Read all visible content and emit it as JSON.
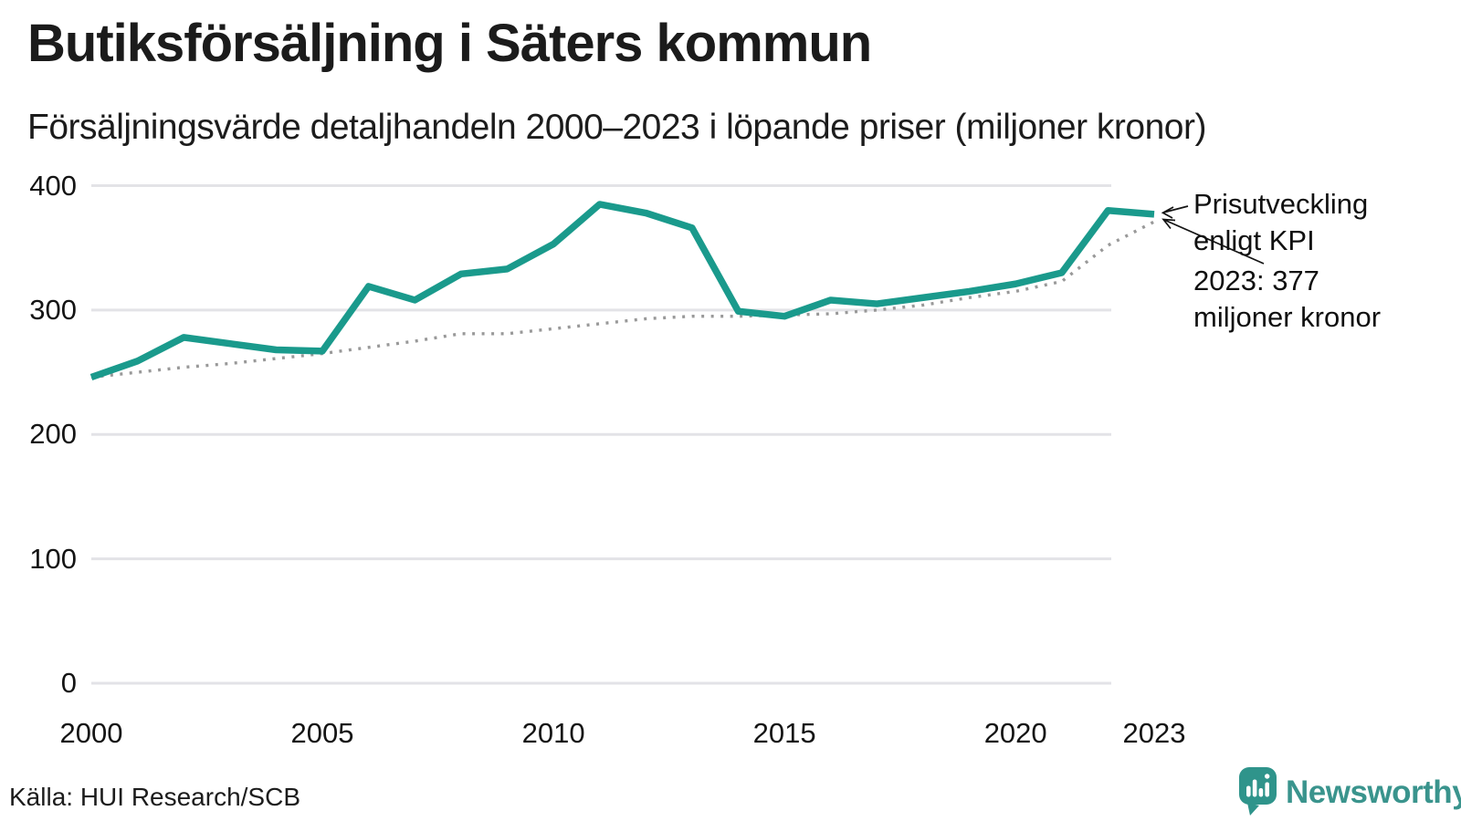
{
  "title": "Butiksförsäljning i Säters kommun",
  "subtitle": "Försäljningsvärde detaljhandeln 2000–2023 i löpande priser (miljoner kronor)",
  "source": "Källa: HUI Research/SCB",
  "brand": {
    "name": "Newsworthy",
    "icon": "speech-bubble-bar-chart-icon",
    "color": "#2f948b",
    "text_color": "#3a948d"
  },
  "colors": {
    "sales_line": "#1a9a8c",
    "kpi_line": "#999999",
    "grid": "#e3e3e7",
    "text": "#141414"
  },
  "annotations": {
    "kpi": {
      "line1": "Prisutveckling",
      "line2": "enligt KPI"
    },
    "value": {
      "line1": "2023: 377",
      "line2": "miljoner kronor"
    }
  },
  "chart_data": {
    "type": "line",
    "title": "Butiksförsäljning i Säters kommun",
    "subtitle": "Försäljningsvärde detaljhandeln 2000–2023 i löpande priser (miljoner kronor)",
    "unit": "miljoner kronor",
    "x": [
      2000,
      2001,
      2002,
      2003,
      2004,
      2005,
      2006,
      2007,
      2008,
      2009,
      2010,
      2011,
      2012,
      2013,
      2014,
      2015,
      2016,
      2017,
      2018,
      2019,
      2020,
      2021,
      2022,
      2023
    ],
    "series": [
      {
        "name": "Försäljningsvärde i löpande priser",
        "style": "solid",
        "color": "#1a9a8c",
        "values": [
          246,
          259,
          278,
          273,
          268,
          267,
          319,
          308,
          329,
          333,
          353,
          385,
          378,
          366,
          299,
          295,
          308,
          305,
          310,
          315,
          321,
          330,
          380,
          377
        ]
      },
      {
        "name": "Prisutveckling enligt KPI",
        "style": "dotted",
        "color": "#999999",
        "values": [
          246,
          250,
          254,
          257,
          261,
          265,
          270,
          275,
          281,
          281,
          285,
          289,
          293,
          295,
          295,
          296,
          297,
          300,
          304,
          310,
          315,
          323,
          352,
          371
        ]
      }
    ],
    "x_ticks": [
      2000,
      2005,
      2010,
      2015,
      2020,
      2023
    ],
    "y_ticks": [
      400,
      300,
      200,
      100,
      0
    ],
    "xlim": [
      2000,
      2023
    ],
    "ylim": [
      0,
      400
    ],
    "grid": "horizontal",
    "legend_position": "annotation-right",
    "highlight": {
      "year": 2023,
      "value": 377
    }
  }
}
